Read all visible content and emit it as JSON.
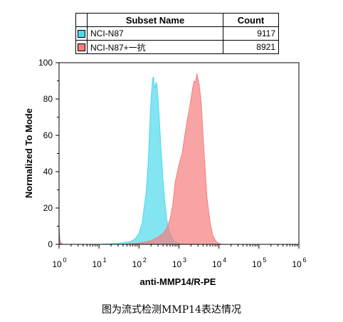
{
  "legend": {
    "header_name": "Subset Name",
    "header_count": "Count",
    "rows": [
      {
        "name": "NCI-N87",
        "count": "9117",
        "color": "#4fd9ec"
      },
      {
        "name": "NCI-N87+一抗",
        "count": "8921",
        "color": "#f77d7d"
      }
    ]
  },
  "chart_data": {
    "type": "area",
    "xlabel": "anti-MMP14/R-PE",
    "ylabel": "Normalized To Mode",
    "xscale": "log",
    "xlim": [
      1,
      1000000
    ],
    "ylim": [
      0,
      100
    ],
    "x_tick_labels": [
      "10",
      "10",
      "10",
      "10",
      "10",
      "10",
      "10"
    ],
    "x_tick_exponents": [
      "0",
      "1",
      "2",
      "3",
      "4",
      "5",
      "6"
    ],
    "y_tick_labels": [
      "0",
      "20",
      "40",
      "60",
      "80",
      "100"
    ],
    "y_tick_values": [
      0,
      20,
      40,
      60,
      80,
      100
    ],
    "grid": false,
    "series": [
      {
        "name": "NCI-N87",
        "color": "#4fd9ec",
        "x": [
          1,
          1.05,
          1.1,
          1.2,
          2,
          10,
          30,
          60,
          80,
          100,
          120,
          150,
          170,
          180,
          190,
          200,
          210,
          215,
          220,
          225,
          230,
          240,
          250,
          260,
          270,
          280,
          300,
          320,
          350,
          400,
          450,
          500,
          600,
          700,
          800,
          1000,
          1300
        ],
        "y": [
          10,
          3,
          1,
          0,
          0,
          0,
          0.5,
          1.5,
          3,
          6,
          12,
          28,
          45,
          58,
          70,
          80,
          86,
          89,
          91,
          92,
          92,
          88,
          86,
          88,
          89,
          88,
          80,
          70,
          55,
          35,
          22,
          13,
          6,
          3,
          1.5,
          0.5,
          0
        ]
      },
      {
        "name": "NCI-N87+一抗",
        "color": "#f77d7d",
        "x": [
          1,
          1.05,
          1.1,
          1.2,
          2,
          40,
          80,
          120,
          200,
          300,
          400,
          500,
          600,
          700,
          800,
          1000,
          1200,
          1400,
          1500,
          1600,
          1800,
          2000,
          2200,
          2400,
          2600,
          2800,
          3000,
          3200,
          3600,
          4000,
          4500,
          5000,
          6000,
          7000,
          8000,
          9000,
          10000,
          12000
        ],
        "y": [
          7,
          2,
          1,
          0,
          0,
          0,
          0.5,
          1,
          2,
          4,
          6,
          9,
          14,
          22,
          34,
          44,
          50,
          60,
          64,
          68,
          74,
          80,
          86,
          90,
          89,
          94,
          91,
          88,
          78,
          60,
          42,
          26,
          12,
          5,
          2.5,
          1,
          0.5,
          0
        ]
      }
    ]
  },
  "caption": "图为流式检测MMP14表达情况"
}
